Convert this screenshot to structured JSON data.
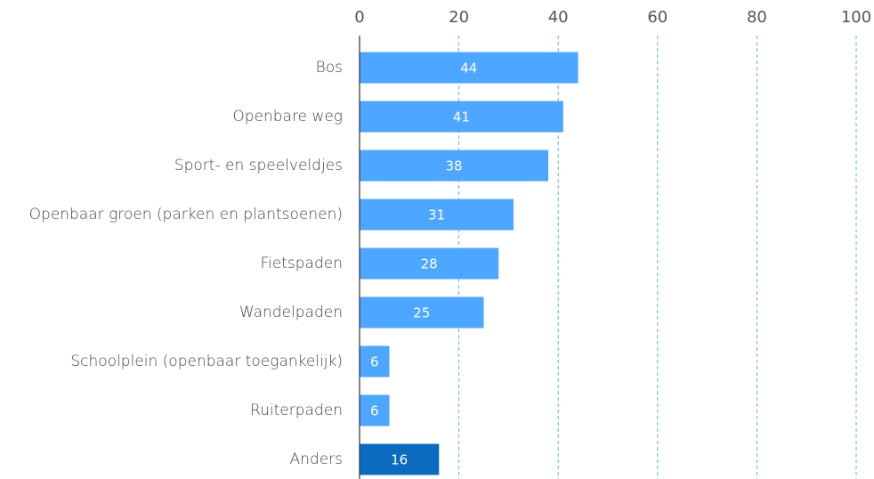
{
  "chart_data": {
    "type": "bar",
    "orientation": "horizontal",
    "categories": [
      "Bos",
      "Openbare weg",
      "Sport- en speelveldjes",
      "Openbaar groen (parken en plantsoenen)",
      "Fietspaden",
      "Wandelpaden",
      "Schoolplein (openbaar toegankelijk)",
      "Ruiterpaden",
      "Anders"
    ],
    "values": [
      44,
      41,
      38,
      31,
      28,
      25,
      6,
      6,
      16
    ],
    "colors": [
      "#4da6ff",
      "#4da6ff",
      "#4da6ff",
      "#4da6ff",
      "#4da6ff",
      "#4da6ff",
      "#4da6ff",
      "#4da6ff",
      "#0b6cbf"
    ],
    "xlim": [
      0,
      100
    ],
    "xticks": [
      0,
      20,
      40,
      60,
      80,
      100
    ],
    "grid": true
  }
}
